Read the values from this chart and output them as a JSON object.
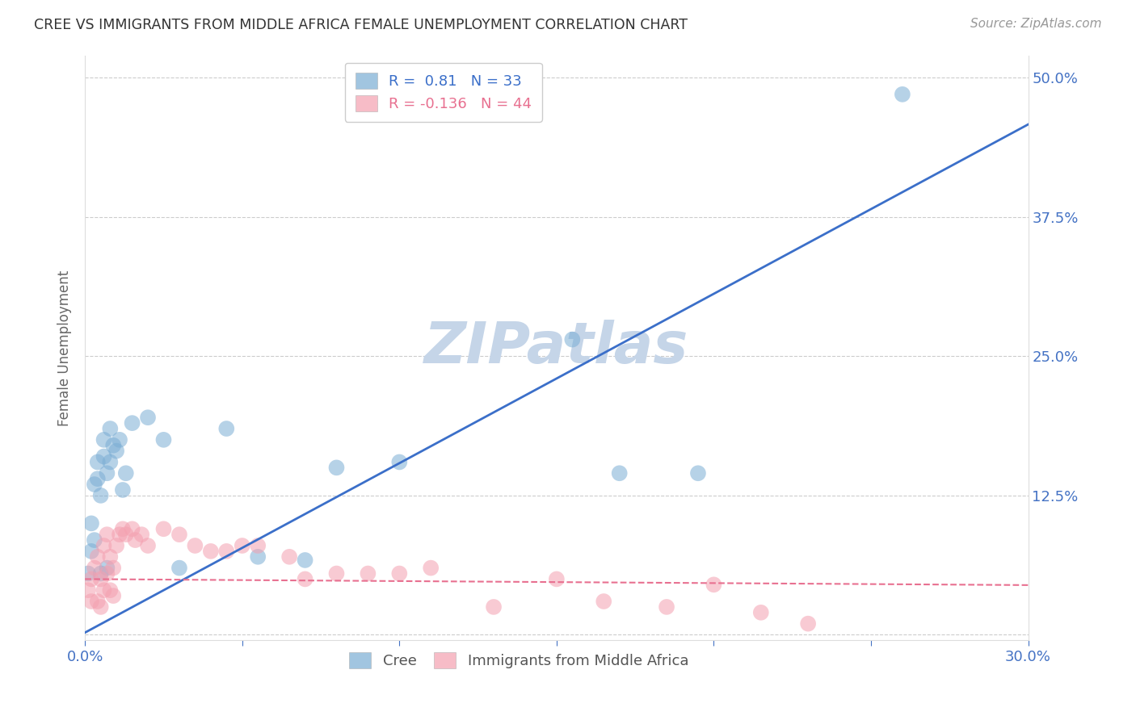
{
  "title": "CREE VS IMMIGRANTS FROM MIDDLE AFRICA FEMALE UNEMPLOYMENT CORRELATION CHART",
  "source": "Source: ZipAtlas.com",
  "ylabel": "Female Unemployment",
  "xlim": [
    0.0,
    0.3
  ],
  "ylim": [
    -0.005,
    0.52
  ],
  "yticks": [
    0.0,
    0.125,
    0.25,
    0.375,
    0.5
  ],
  "ytick_labels": [
    "",
    "12.5%",
    "25.0%",
    "37.5%",
    "50.0%"
  ],
  "xticks": [
    0.0,
    0.05,
    0.1,
    0.15,
    0.2,
    0.25,
    0.3
  ],
  "xtick_labels": [
    "0.0%",
    "",
    "",
    "",
    "",
    "",
    "30.0%"
  ],
  "cree_R": 0.81,
  "cree_N": 33,
  "immig_R": -0.136,
  "immig_N": 44,
  "cree_color": "#7AADD4",
  "immig_color": "#F4A0B0",
  "cree_line_color": "#3B6FC9",
  "immig_line_color": "#E87090",
  "watermark": "ZIPatlas",
  "watermark_color": "#C5D5E8",
  "tick_color_right": "#4472C4",
  "background_color": "#FFFFFF",
  "cree_line_slope": 1.52,
  "cree_line_intercept": 0.002,
  "immig_line_slope": -0.018,
  "immig_line_intercept": 0.05,
  "cree_x": [
    0.001,
    0.002,
    0.002,
    0.003,
    0.003,
    0.004,
    0.004,
    0.005,
    0.005,
    0.006,
    0.006,
    0.007,
    0.007,
    0.008,
    0.008,
    0.009,
    0.01,
    0.011,
    0.012,
    0.013,
    0.015,
    0.02,
    0.025,
    0.03,
    0.045,
    0.055,
    0.07,
    0.08,
    0.1,
    0.155,
    0.17,
    0.195,
    0.26
  ],
  "cree_y": [
    0.055,
    0.075,
    0.1,
    0.085,
    0.135,
    0.14,
    0.155,
    0.055,
    0.125,
    0.16,
    0.175,
    0.06,
    0.145,
    0.155,
    0.185,
    0.17,
    0.165,
    0.175,
    0.13,
    0.145,
    0.19,
    0.195,
    0.175,
    0.06,
    0.185,
    0.07,
    0.067,
    0.15,
    0.155,
    0.265,
    0.145,
    0.145,
    0.485
  ],
  "immig_x": [
    0.001,
    0.002,
    0.002,
    0.003,
    0.004,
    0.004,
    0.005,
    0.005,
    0.006,
    0.006,
    0.007,
    0.007,
    0.008,
    0.008,
    0.009,
    0.009,
    0.01,
    0.011,
    0.012,
    0.013,
    0.015,
    0.016,
    0.018,
    0.02,
    0.025,
    0.03,
    0.035,
    0.04,
    0.045,
    0.05,
    0.055,
    0.065,
    0.07,
    0.08,
    0.09,
    0.1,
    0.11,
    0.13,
    0.15,
    0.165,
    0.185,
    0.2,
    0.215,
    0.23
  ],
  "immig_y": [
    0.04,
    0.05,
    0.03,
    0.06,
    0.07,
    0.03,
    0.05,
    0.025,
    0.08,
    0.04,
    0.09,
    0.055,
    0.07,
    0.04,
    0.06,
    0.035,
    0.08,
    0.09,
    0.095,
    0.09,
    0.095,
    0.085,
    0.09,
    0.08,
    0.095,
    0.09,
    0.08,
    0.075,
    0.075,
    0.08,
    0.08,
    0.07,
    0.05,
    0.055,
    0.055,
    0.055,
    0.06,
    0.025,
    0.05,
    0.03,
    0.025,
    0.045,
    0.02,
    0.01
  ]
}
